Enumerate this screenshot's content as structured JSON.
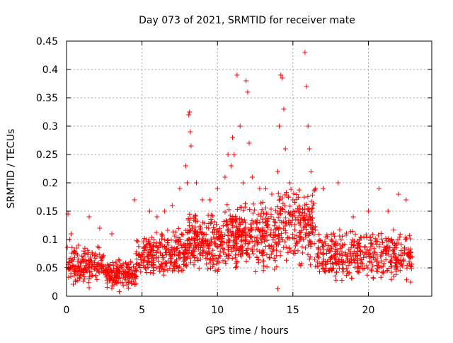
{
  "chart_data": {
    "type": "scatter",
    "title": "Day 073 of 2021, SRMTID for receiver mate",
    "xlabel": "GPS time / hours",
    "ylabel": "SRMTID / TECUs",
    "xlim": [
      0,
      24.2
    ],
    "ylim": [
      0,
      0.45
    ],
    "xticks": [
      0,
      5,
      10,
      15,
      20
    ],
    "xtick_labels": [
      "0",
      "5",
      "10",
      "15",
      "20"
    ],
    "yticks": [
      0,
      0.05,
      0.1,
      0.15,
      0.2,
      0.25,
      0.3,
      0.35,
      0.4,
      0.45
    ],
    "ytick_labels": [
      "0",
      "0.05",
      "0.1",
      "0.15",
      "0.2",
      "0.25",
      "0.3",
      "0.35",
      "0.4",
      "0.45"
    ],
    "grid": true,
    "marker": "+",
    "series": [
      {
        "name": "SRMTID",
        "color": "#ff0000",
        "points": [
          [
            0.1,
            0.145
          ],
          [
            0.2,
            0.1
          ],
          [
            0.3,
            0.11
          ],
          [
            0.5,
            0.08
          ],
          [
            0.8,
            0.09
          ],
          [
            1.5,
            0.14
          ],
          [
            2.2,
            0.12
          ],
          [
            3.0,
            0.11
          ],
          [
            4.5,
            0.17
          ],
          [
            5.5,
            0.15
          ],
          [
            6.0,
            0.14
          ],
          [
            6.5,
            0.15
          ],
          [
            7.0,
            0.16
          ],
          [
            7.5,
            0.19
          ],
          [
            7.9,
            0.23
          ],
          [
            8.0,
            0.2
          ],
          [
            8.1,
            0.32
          ],
          [
            8.15,
            0.325
          ],
          [
            8.2,
            0.29
          ],
          [
            8.25,
            0.265
          ],
          [
            8.6,
            0.2
          ],
          [
            9.0,
            0.17
          ],
          [
            9.5,
            0.17
          ],
          [
            10.0,
            0.19
          ],
          [
            10.5,
            0.21
          ],
          [
            10.7,
            0.25
          ],
          [
            10.9,
            0.23
          ],
          [
            11.0,
            0.28
          ],
          [
            11.1,
            0.25
          ],
          [
            11.3,
            0.39
          ],
          [
            11.5,
            0.3
          ],
          [
            11.7,
            0.2
          ],
          [
            11.9,
            0.38
          ],
          [
            12.0,
            0.36
          ],
          [
            12.1,
            0.27
          ],
          [
            12.3,
            0.21
          ],
          [
            12.8,
            0.19
          ],
          [
            13.2,
            0.19
          ],
          [
            13.6,
            0.18
          ],
          [
            14.0,
            0.22
          ],
          [
            14.1,
            0.3
          ],
          [
            14.2,
            0.39
          ],
          [
            14.3,
            0.385
          ],
          [
            14.4,
            0.33
          ],
          [
            14.5,
            0.26
          ],
          [
            14.8,
            0.2
          ],
          [
            15.0,
            0.17
          ],
          [
            15.2,
            0.15
          ],
          [
            15.5,
            0.13
          ],
          [
            15.8,
            0.43
          ],
          [
            15.9,
            0.37
          ],
          [
            16.0,
            0.3
          ],
          [
            16.1,
            0.26
          ],
          [
            16.2,
            0.22
          ],
          [
            16.5,
            0.19
          ],
          [
            17.0,
            0.19
          ],
          [
            18.0,
            0.2
          ],
          [
            19.0,
            0.14
          ],
          [
            20.0,
            0.15
          ],
          [
            20.7,
            0.19
          ],
          [
            21.3,
            0.15
          ],
          [
            22.0,
            0.18
          ],
          [
            22.5,
            0.17
          ],
          [
            22.8,
            0.07
          ],
          [
            22.8,
            0.025
          ],
          [
            14.0,
            0.013
          ],
          [
            3.5,
            0.008
          ],
          [
            4.0,
            0.02
          ],
          [
            1.5,
            0.015
          ]
        ],
        "segments": [
          {
            "x": [
              0.0,
              2.5
            ],
            "y_low": 0.02,
            "y_high": 0.09,
            "count": 170
          },
          {
            "x": [
              2.5,
              4.6
            ],
            "y_low": 0.01,
            "y_high": 0.07,
            "count": 160
          },
          {
            "x": [
              4.6,
              8.0
            ],
            "y_low": 0.03,
            "y_high": 0.12,
            "count": 260
          },
          {
            "x": [
              8.0,
              10.5
            ],
            "y_low": 0.04,
            "y_high": 0.15,
            "count": 220
          },
          {
            "x": [
              10.5,
              14.0
            ],
            "y_low": 0.04,
            "y_high": 0.17,
            "count": 310
          },
          {
            "x": [
              14.0,
              16.5
            ],
            "y_low": 0.05,
            "y_high": 0.2,
            "count": 200
          },
          {
            "x": [
              16.5,
              22.9
            ],
            "y_low": 0.025,
            "y_high": 0.12,
            "count": 420
          }
        ]
      }
    ]
  }
}
